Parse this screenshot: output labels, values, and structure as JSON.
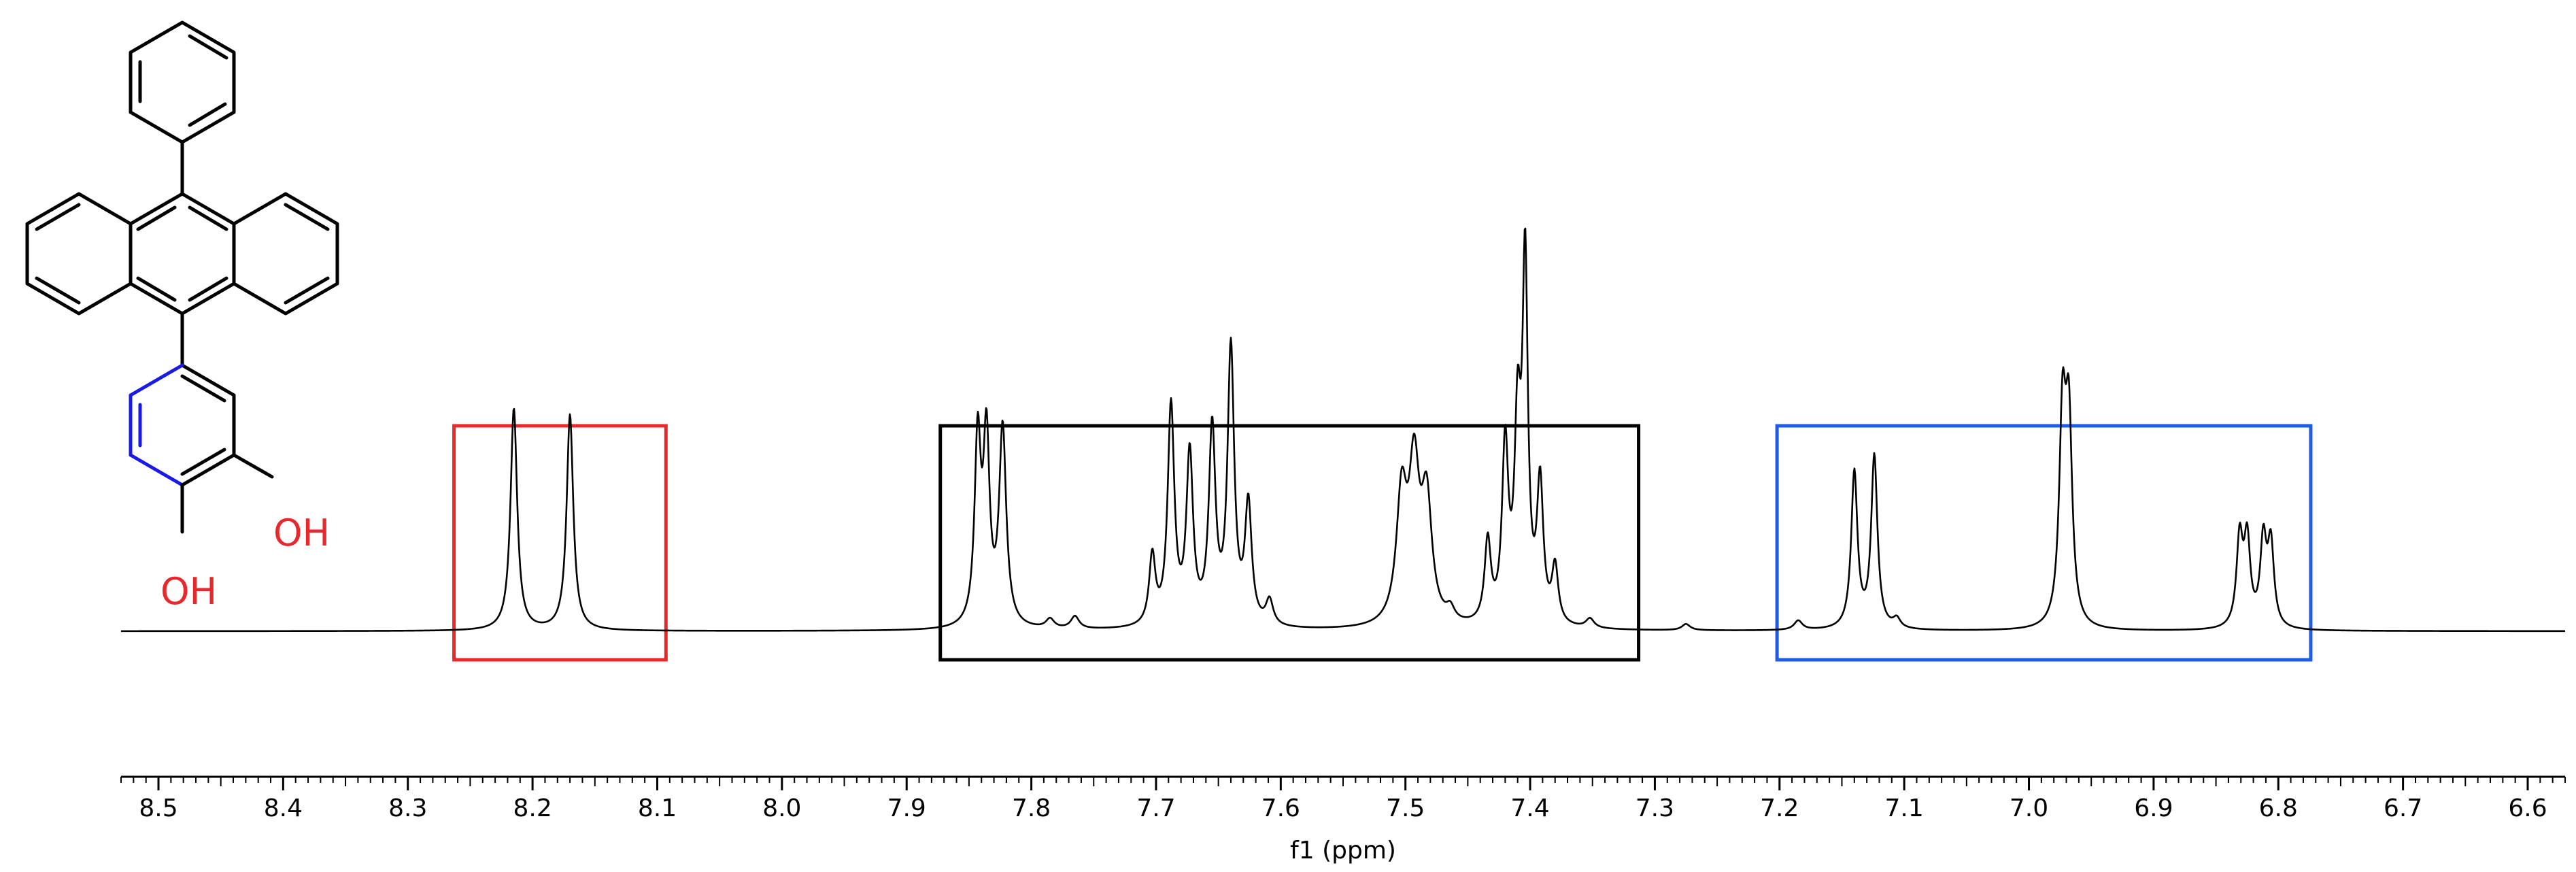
{
  "chart_data": {
    "type": "line",
    "xlabel": "f1 (ppm)",
    "x_reversed": true,
    "xlim": [
      8.53,
      6.57
    ],
    "ticks": [
      8.5,
      8.4,
      8.3,
      8.2,
      8.1,
      8.0,
      7.9,
      7.8,
      7.7,
      7.6,
      7.5,
      7.4,
      7.3,
      7.2,
      7.1,
      7.0,
      6.9,
      6.8,
      6.7,
      6.6
    ],
    "tick_labels": [
      "8.5",
      "8.4",
      "8.3",
      "8.2",
      "8.1",
      "8.0",
      "7.9",
      "7.8",
      "7.7",
      "7.6",
      "7.5",
      "7.4",
      "7.3",
      "7.2",
      "7.1",
      "7.0",
      "6.9",
      "6.8",
      "6.7",
      "6.6"
    ],
    "ylim": [
      0,
      1.25
    ],
    "peaks": [
      {
        "ppm": 8.215,
        "height": 0.71,
        "width": 0.0032
      },
      {
        "ppm": 8.17,
        "height": 0.69,
        "width": 0.0032
      },
      {
        "ppm": 7.843,
        "height": 0.59,
        "width": 0.003
      },
      {
        "ppm": 7.836,
        "height": 0.58,
        "width": 0.003
      },
      {
        "ppm": 7.823,
        "height": 0.63,
        "width": 0.0034
      },
      {
        "ppm": 7.785,
        "height": 0.03,
        "width": 0.004
      },
      {
        "ppm": 7.765,
        "height": 0.04,
        "width": 0.004
      },
      {
        "ppm": 7.703,
        "height": 0.22,
        "width": 0.003
      },
      {
        "ppm": 7.688,
        "height": 0.7,
        "width": 0.0032
      },
      {
        "ppm": 7.673,
        "height": 0.54,
        "width": 0.0032
      },
      {
        "ppm": 7.655,
        "height": 0.62,
        "width": 0.0032
      },
      {
        "ppm": 7.64,
        "height": 0.88,
        "width": 0.0032
      },
      {
        "ppm": 7.626,
        "height": 0.38,
        "width": 0.0032
      },
      {
        "ppm": 7.609,
        "height": 0.08,
        "width": 0.0035
      },
      {
        "ppm": 7.503,
        "height": 0.4,
        "width": 0.005
      },
      {
        "ppm": 7.493,
        "height": 0.47,
        "width": 0.005
      },
      {
        "ppm": 7.483,
        "height": 0.38,
        "width": 0.005
      },
      {
        "ppm": 7.464,
        "height": 0.04,
        "width": 0.004
      },
      {
        "ppm": 7.434,
        "height": 0.26,
        "width": 0.003
      },
      {
        "ppm": 7.42,
        "height": 0.56,
        "width": 0.003
      },
      {
        "ppm": 7.41,
        "height": 0.6,
        "width": 0.003
      },
      {
        "ppm": 7.404,
        "height": 1.12,
        "width": 0.0026
      },
      {
        "ppm": 7.392,
        "height": 0.44,
        "width": 0.003
      },
      {
        "ppm": 7.38,
        "height": 0.18,
        "width": 0.003
      },
      {
        "ppm": 7.352,
        "height": 0.03,
        "width": 0.004
      },
      {
        "ppm": 7.275,
        "height": 0.02,
        "width": 0.004
      },
      {
        "ppm": 7.185,
        "height": 0.03,
        "width": 0.004
      },
      {
        "ppm": 7.14,
        "height": 0.5,
        "width": 0.003
      },
      {
        "ppm": 7.124,
        "height": 0.55,
        "width": 0.003
      },
      {
        "ppm": 7.106,
        "height": 0.03,
        "width": 0.0035
      },
      {
        "ppm": 6.973,
        "height": 0.65,
        "width": 0.0032
      },
      {
        "ppm": 6.968,
        "height": 0.62,
        "width": 0.0032
      },
      {
        "ppm": 6.831,
        "height": 0.28,
        "width": 0.003
      },
      {
        "ppm": 6.825,
        "height": 0.27,
        "width": 0.003
      },
      {
        "ppm": 6.812,
        "height": 0.27,
        "width": 0.003
      },
      {
        "ppm": 6.806,
        "height": 0.26,
        "width": 0.003
      }
    ],
    "boxes": [
      {
        "from": 8.263,
        "to": 8.093,
        "color": "#e8282a"
      },
      {
        "from": 7.873,
        "to": 7.313,
        "color": "#000000"
      },
      {
        "from": 7.202,
        "to": 6.774,
        "color": "#1e5ce6"
      }
    ]
  },
  "molecule": {
    "label_oh_1": "OH",
    "label_oh_2": "OH",
    "highlight_color": "#1a1ae6",
    "label_color": "#e8282a"
  }
}
